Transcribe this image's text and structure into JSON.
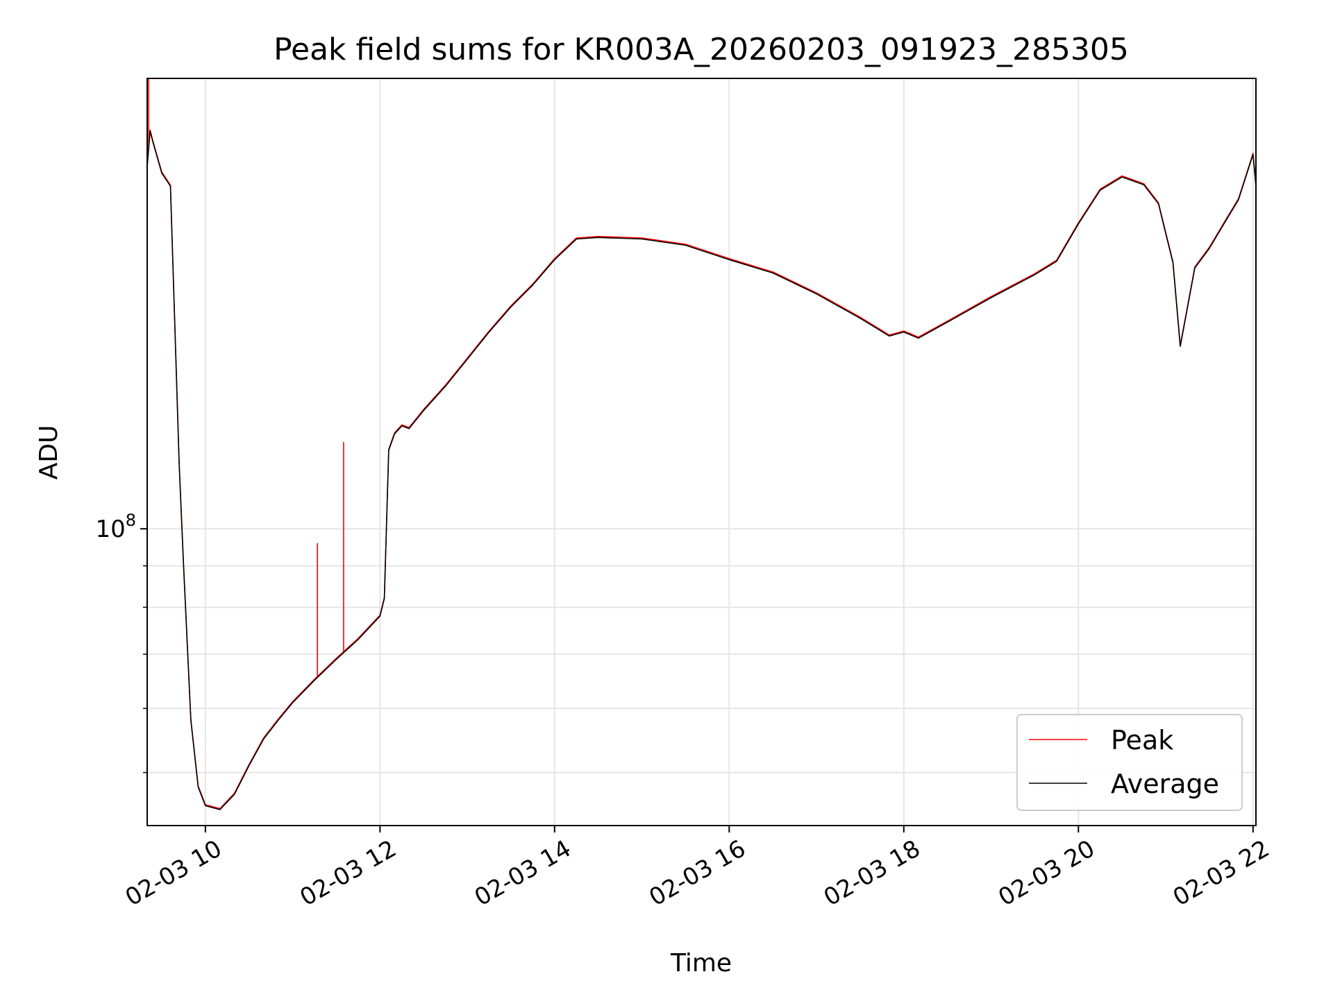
{
  "chart_data": {
    "type": "line",
    "title": "Peak field sums for KR003A_20260203_091923_285305",
    "xlabel": "Time",
    "ylabel": "ADU",
    "y_scale": "log",
    "xlim": [
      "2026-02-03 09:20",
      "2026-02-03 22:02"
    ],
    "ylim": [
      43000000,
      360000000
    ],
    "x_ticks": [
      {
        "time": "2026-02-03 10:00",
        "label": "02-03 10"
      },
      {
        "time": "2026-02-03 12:00",
        "label": "02-03 12"
      },
      {
        "time": "2026-02-03 14:00",
        "label": "02-03 14"
      },
      {
        "time": "2026-02-03 16:00",
        "label": "02-03 16"
      },
      {
        "time": "2026-02-03 18:00",
        "label": "02-03 18"
      },
      {
        "time": "2026-02-03 20:00",
        "label": "02-03 20"
      },
      {
        "time": "2026-02-03 22:00",
        "label": "02-03 22"
      }
    ],
    "y_major_ticks": [
      {
        "value": 100000000,
        "base": "10",
        "exp": "8"
      }
    ],
    "y_minor_ticks": [
      50000000,
      60000000,
      70000000,
      80000000,
      90000000
    ],
    "grid": true,
    "legend": {
      "location": "lower-right",
      "entries": [
        "Peak",
        "Average"
      ]
    },
    "series": [
      {
        "name": "Peak",
        "color": "#ff0000",
        "spikes": [
          {
            "time": "2026-02-03 09:21",
            "value": 360000000
          },
          {
            "time": "2026-02-03 11:17",
            "value": 96000000
          },
          {
            "time": "2026-02-03 11:35",
            "value": 128000000
          }
        ]
      },
      {
        "name": "Average",
        "color": "#000000",
        "x": [
          "2026-02-03 09:20",
          "2026-02-03 09:22",
          "2026-02-03 09:24",
          "2026-02-03 09:30",
          "2026-02-03 09:36",
          "2026-02-03 09:42",
          "2026-02-03 09:45",
          "2026-02-03 09:50",
          "2026-02-03 09:55",
          "2026-02-03 10:00",
          "2026-02-03 10:10",
          "2026-02-03 10:20",
          "2026-02-03 10:30",
          "2026-02-03 10:40",
          "2026-02-03 10:50",
          "2026-02-03 11:00",
          "2026-02-03 11:15",
          "2026-02-03 11:30",
          "2026-02-03 11:45",
          "2026-02-03 12:00",
          "2026-02-03 12:03",
          "2026-02-03 12:06",
          "2026-02-03 12:10",
          "2026-02-03 12:15",
          "2026-02-03 12:20",
          "2026-02-03 12:30",
          "2026-02-03 12:45",
          "2026-02-03 13:00",
          "2026-02-03 13:15",
          "2026-02-03 13:30",
          "2026-02-03 13:45",
          "2026-02-03 14:00",
          "2026-02-03 14:15",
          "2026-02-03 14:30",
          "2026-02-03 15:00",
          "2026-02-03 15:30",
          "2026-02-03 16:00",
          "2026-02-03 16:30",
          "2026-02-03 17:00",
          "2026-02-03 17:30",
          "2026-02-03 17:50",
          "2026-02-03 18:00",
          "2026-02-03 18:10",
          "2026-02-03 18:30",
          "2026-02-03 19:00",
          "2026-02-03 19:30",
          "2026-02-03 19:45",
          "2026-02-03 20:00",
          "2026-02-03 20:15",
          "2026-02-03 20:30",
          "2026-02-03 20:45",
          "2026-02-03 20:55",
          "2026-02-03 21:05",
          "2026-02-03 21:10",
          "2026-02-03 21:20",
          "2026-02-03 21:30",
          "2026-02-03 21:40",
          "2026-02-03 21:50",
          "2026-02-03 22:00",
          "2026-02-03 22:02"
        ],
        "y": [
          280000000,
          310000000,
          300000000,
          275000000,
          265000000,
          120000000,
          90000000,
          58000000,
          48000000,
          45500000,
          45000000,
          47000000,
          51000000,
          55000000,
          58000000,
          61000000,
          65000000,
          69000000,
          73000000,
          78000000,
          82000000,
          125000000,
          131000000,
          134000000,
          133000000,
          140000000,
          150000000,
          162000000,
          175000000,
          188000000,
          200000000,
          215000000,
          228000000,
          229000000,
          228000000,
          224000000,
          215000000,
          207000000,
          195000000,
          182000000,
          173000000,
          175000000,
          172000000,
          180000000,
          193000000,
          206000000,
          214000000,
          238000000,
          262000000,
          272000000,
          266000000,
          252000000,
          213000000,
          168000000,
          210000000,
          222000000,
          238000000,
          255000000,
          290000000,
          265000000
        ]
      }
    ]
  }
}
